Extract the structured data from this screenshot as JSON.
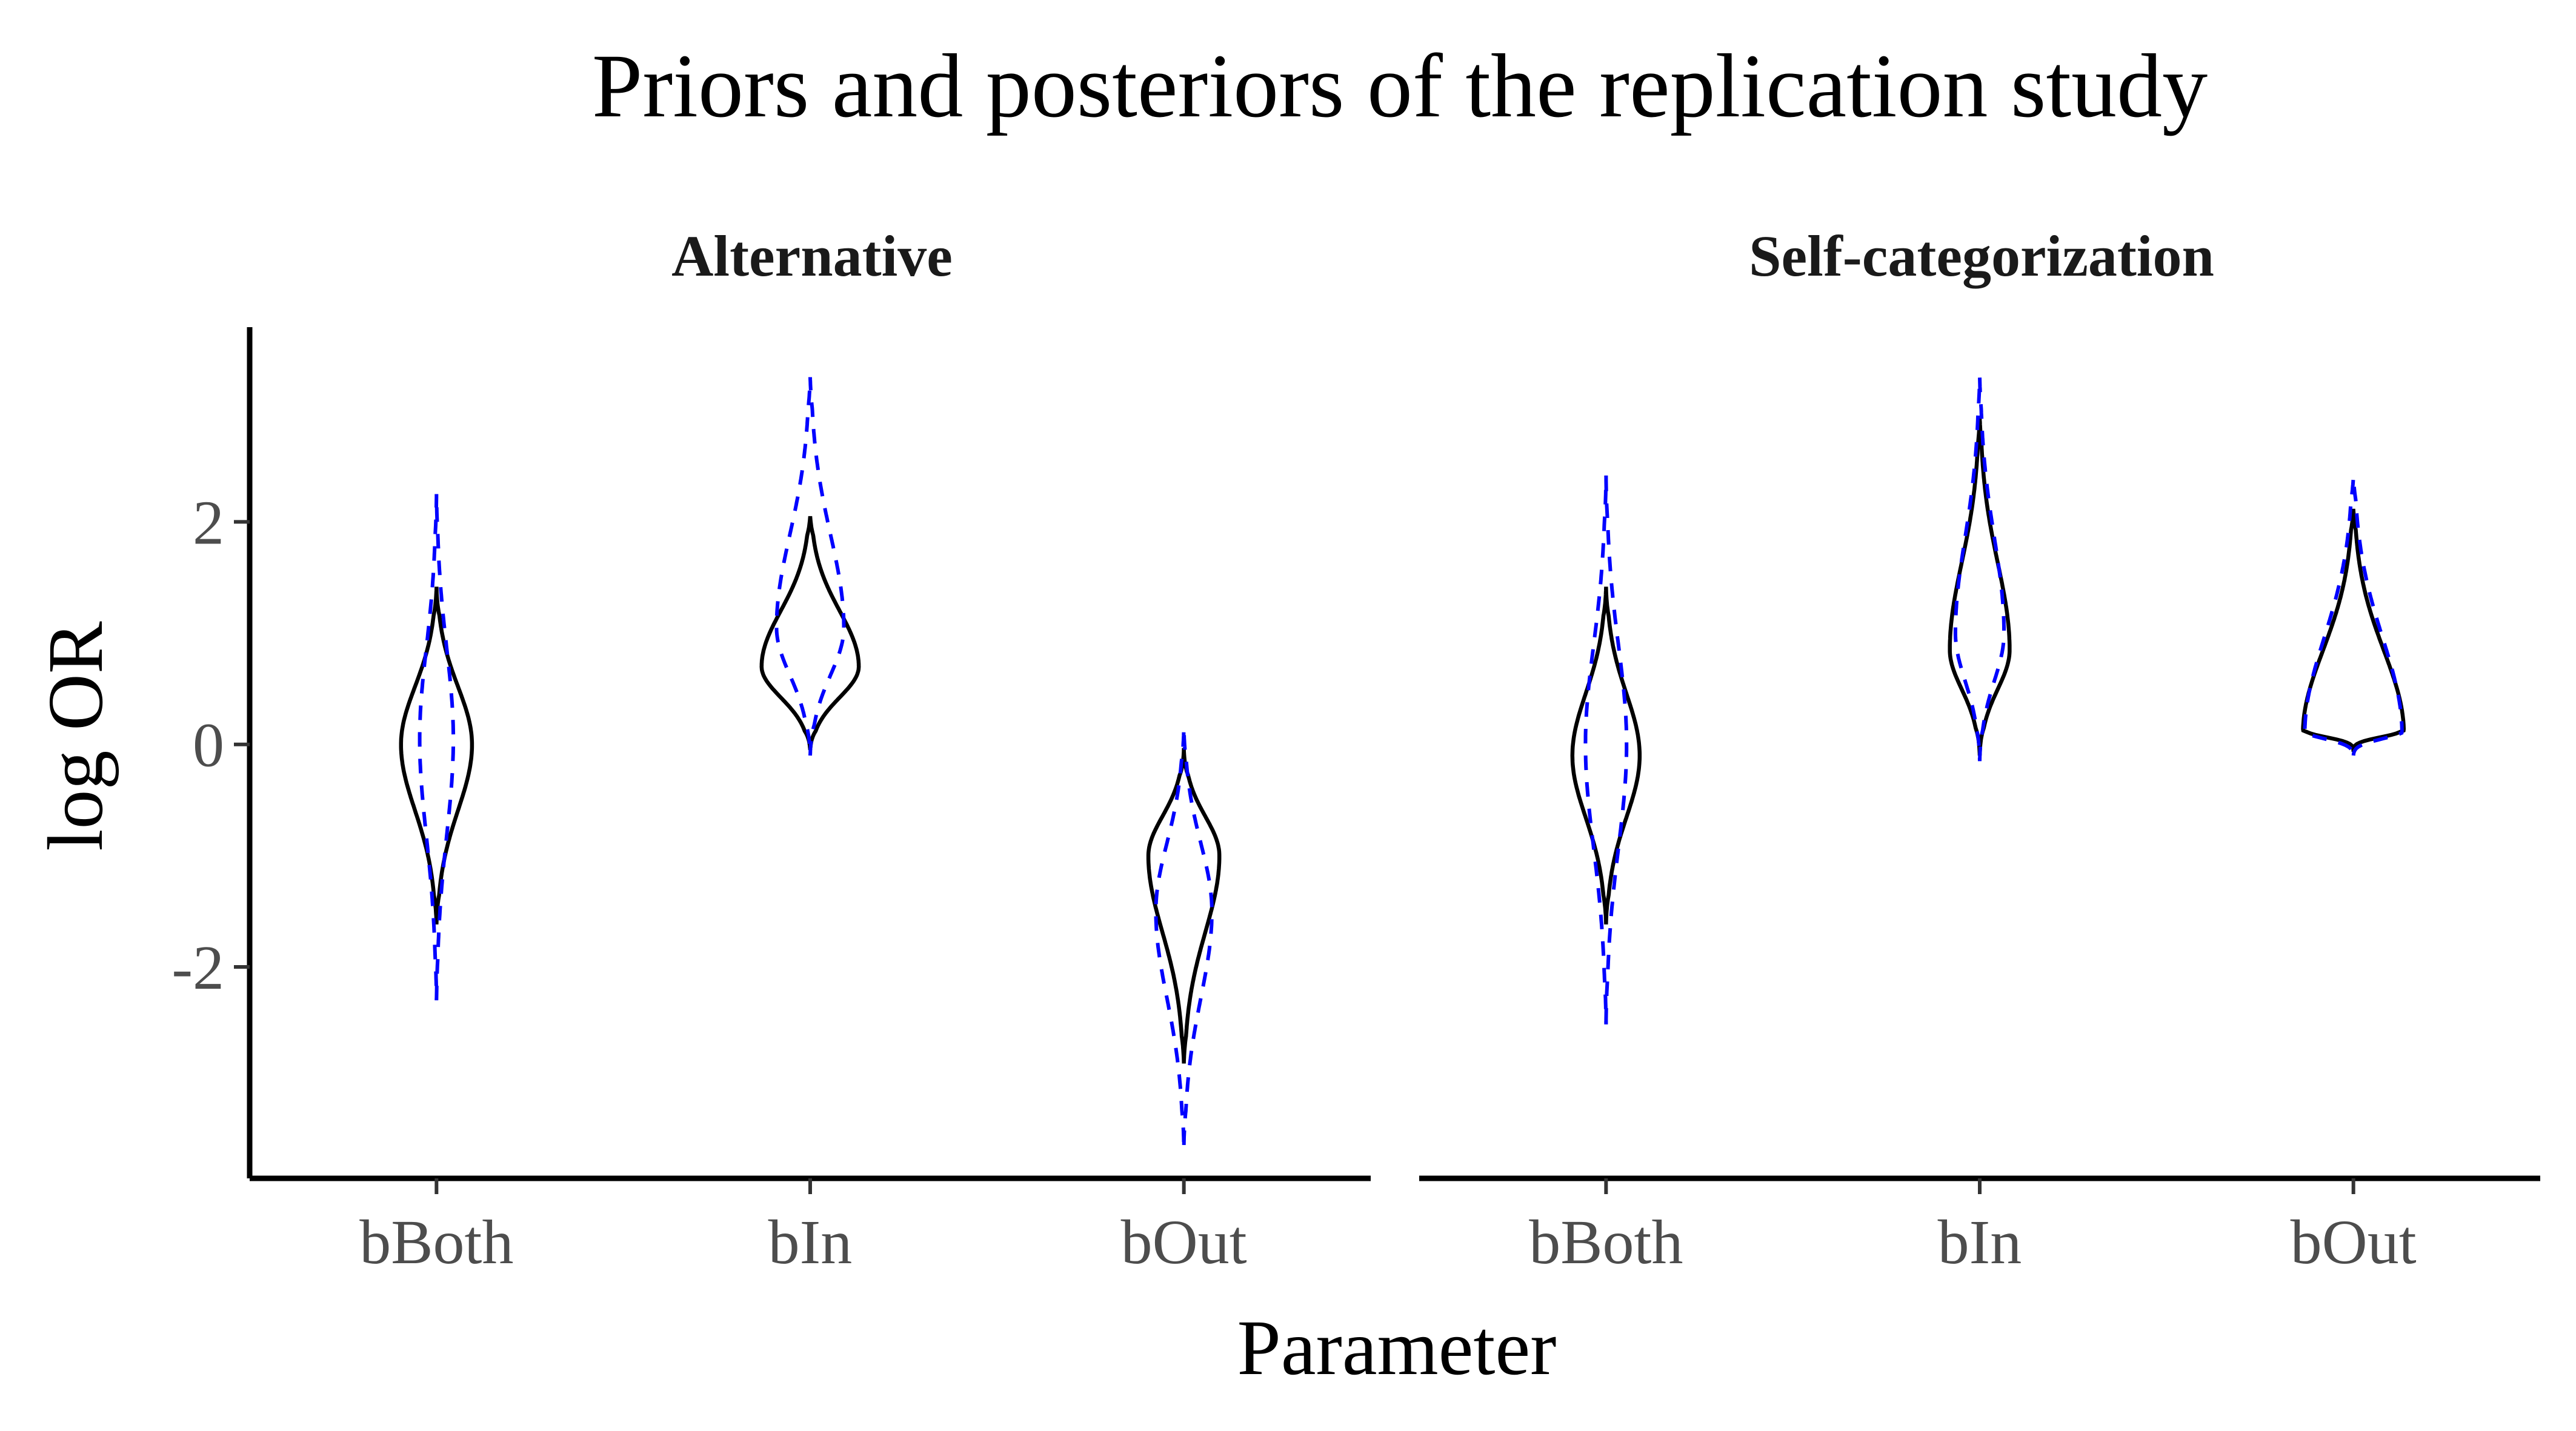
{
  "chart_data": {
    "type": "violin",
    "title": "Priors and posteriors of the replication study",
    "xlabel": "Parameter",
    "ylabel": "log OR",
    "ylim": [
      -3.9,
      3.75
    ],
    "yticks": [
      -2,
      0,
      2
    ],
    "categories": [
      "bBoth",
      "bIn",
      "bOut"
    ],
    "panels": [
      {
        "name": "Alternative",
        "violins": [
          {
            "category": "bBoth",
            "posterior": {
              "ymin": -1.6,
              "ymax": 1.4,
              "mode": 0.0,
              "half_width": 0.095
            },
            "prior": {
              "ymin": -2.3,
              "ymax": 2.25,
              "mode": 0.05,
              "half_width": 0.045
            }
          },
          {
            "category": "bIn",
            "posterior": {
              "ymin": -0.05,
              "ymax": 2.05,
              "mode": 0.7,
              "half_width": 0.13
            },
            "prior": {
              "ymin": -0.1,
              "ymax": 3.3,
              "mode": 1.05,
              "half_width": 0.09
            }
          },
          {
            "category": "bOut",
            "posterior": {
              "ymin": -2.85,
              "ymax": -0.05,
              "mode": -1.0,
              "half_width": 0.095
            },
            "prior": {
              "ymin": -3.6,
              "ymax": 0.15,
              "mode": -1.5,
              "half_width": 0.075
            }
          }
        ]
      },
      {
        "name": "Self-categorization",
        "violins": [
          {
            "category": "bBoth",
            "posterior": {
              "ymin": -1.6,
              "ymax": 1.4,
              "mode": -0.1,
              "half_width": 0.09
            },
            "prior": {
              "ymin": -2.5,
              "ymax": 2.4,
              "mode": 0.0,
              "half_width": 0.055
            }
          },
          {
            "category": "bIn",
            "posterior": {
              "ymin": -0.1,
              "ymax": 2.95,
              "mode": 0.85,
              "half_width": 0.08
            },
            "prior": {
              "ymin": -0.15,
              "ymax": 3.3,
              "mode": 1.0,
              "half_width": 0.065
            }
          },
          {
            "category": "bOut",
            "posterior": {
              "ymin": -0.05,
              "ymax": 2.1,
              "mode": 0.1,
              "half_width": 0.135
            },
            "prior": {
              "ymin": -0.1,
              "ymax": 2.4,
              "mode": 0.1,
              "half_width": 0.13
            }
          }
        ]
      }
    ],
    "series": [
      {
        "role": "posterior",
        "color": "#000000",
        "line": "solid"
      },
      {
        "role": "prior",
        "color": "#0000ff",
        "line": "dashed"
      }
    ]
  }
}
